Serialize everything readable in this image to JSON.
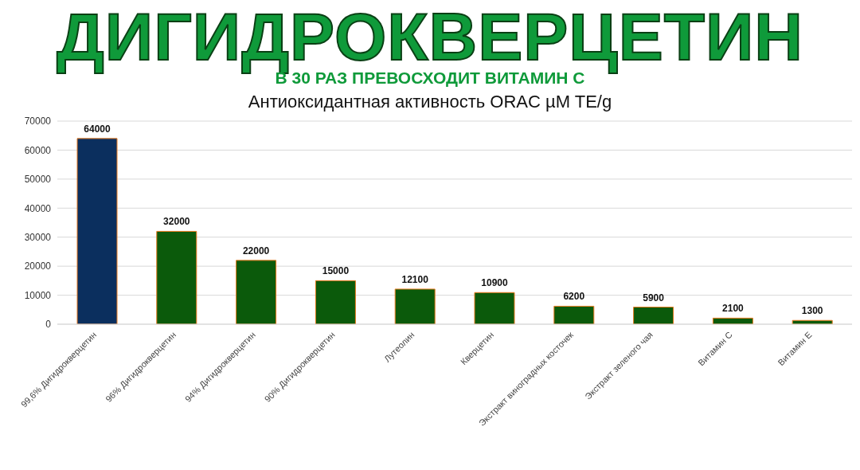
{
  "chart_data": {
    "type": "bar",
    "title": "ДИГИДРОКВЕРЦЕТИН",
    "subtitle": "В 30 РАЗ ПРЕВОСХОДИТ ВИТАМИН С",
    "annotations": [
      "Антиоксидантная активность ORAC µM TE/g"
    ],
    "categories": [
      "99,6% Дигидрокверцетин",
      "96% Дигидрокверцетин",
      "94% Дигидрокверцетин",
      "90% Дигидрокверцетин",
      "Лутеолин",
      "Кверцетин",
      "Экстракт виноградных косточек",
      "Экстракт зеленого чая",
      "Витамин С",
      "Витамин Е"
    ],
    "values": [
      64000,
      32000,
      22000,
      15000,
      12100,
      10900,
      6200,
      5900,
      2100,
      1300
    ],
    "colors": [
      "#0b2f5e",
      "#0b5a0b",
      "#0b5a0b",
      "#0b5a0b",
      "#0b5a0b",
      "#0b5a0b",
      "#0b5a0b",
      "#0b5a0b",
      "#0b5a0b",
      "#0b5a0b"
    ],
    "ylim": [
      0,
      70000
    ],
    "yticks": [
      0,
      10000,
      20000,
      30000,
      40000,
      50000,
      60000,
      70000
    ],
    "grid": "y",
    "data_labels": true
  }
}
